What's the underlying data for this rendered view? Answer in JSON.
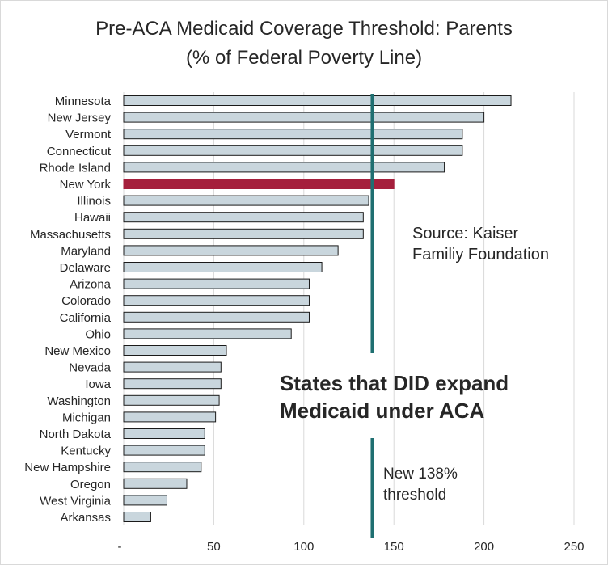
{
  "chart_data": {
    "type": "bar",
    "orientation": "horizontal",
    "title_lines": [
      "Pre-ACA Medicaid Coverage Threshold:  Parents",
      "(% of Federal Poverty Line)"
    ],
    "categories": [
      "Minnesota",
      "New Jersey",
      "Vermont",
      "Connecticut",
      "Rhode Island",
      "New York",
      "Illinois",
      "Hawaii",
      "Massachusetts",
      "Maryland",
      "Delaware",
      "Arizona",
      "Colorado",
      "California",
      "Ohio",
      "New Mexico",
      "Nevada",
      "Iowa",
      "Washington",
      "Michigan",
      "North Dakota",
      "Kentucky",
      "New Hampshire",
      "Oregon",
      "West Virginia",
      "Arkansas"
    ],
    "values": [
      215,
      200,
      188,
      188,
      178,
      150,
      136,
      133,
      133,
      119,
      110,
      103,
      103,
      103,
      93,
      57,
      54,
      54,
      53,
      51,
      45,
      45,
      43,
      35,
      24,
      15
    ],
    "highlight": "New York",
    "xlim": [
      0,
      250
    ],
    "xticks": [
      "-",
      "50",
      "100",
      "150",
      "200",
      "250"
    ],
    "xtick_values": [
      0,
      50,
      100,
      150,
      200,
      250
    ],
    "grid": "vertical",
    "reference_line": {
      "value": 138
    },
    "annotations": {
      "source": [
        "Source: Kaiser",
        "Familiy Foundation"
      ],
      "expand": [
        "States that DID expand",
        "Medicaid under ACA"
      ],
      "threshold": [
        "New 138%",
        "threshold"
      ]
    },
    "colors": {
      "bar": "#c9d6dd",
      "bar_edge": "#1a1a1a",
      "highlight": "#a51f3c",
      "reference_line": "#1f6f71",
      "grid": "#d9d9d9",
      "text": "#262626"
    }
  }
}
